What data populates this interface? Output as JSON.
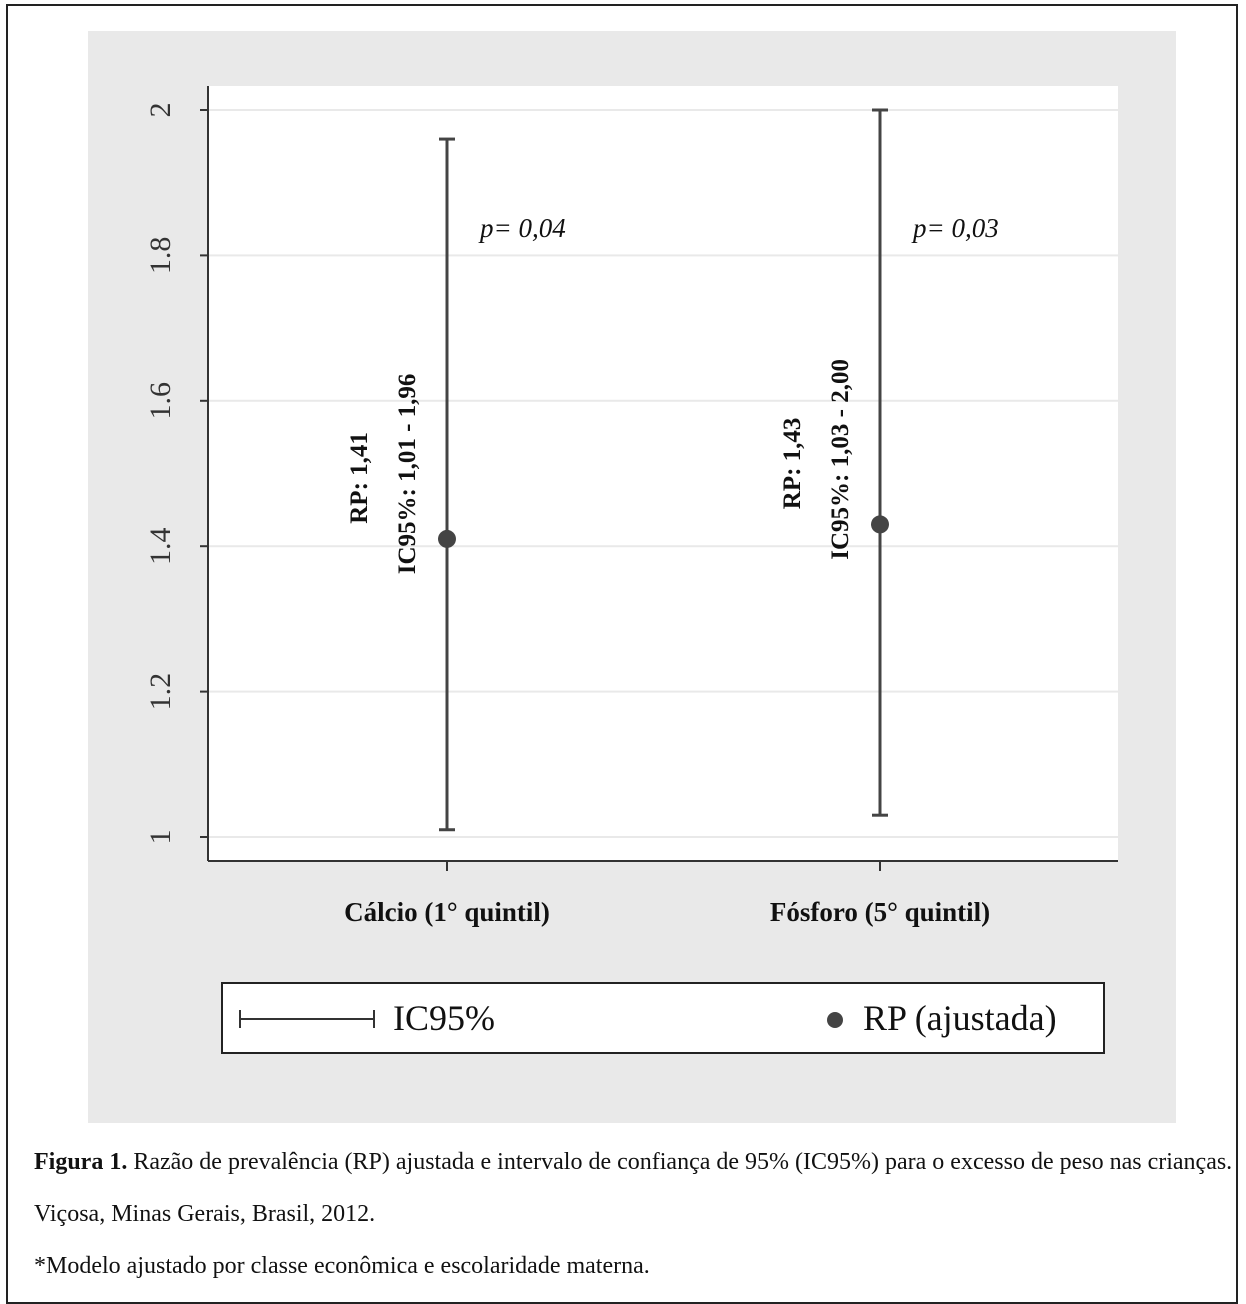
{
  "chart_data": {
    "type": "scatter",
    "subtype": "error-bar",
    "categories": [
      "Cálcio (1° quintil)",
      "Fósforo (5° quintil)"
    ],
    "estimates": [
      1.41,
      1.43
    ],
    "ci_lower": [
      1.01,
      1.03
    ],
    "ci_upper": [
      1.96,
      2.0
    ],
    "point_labels": [
      {
        "rp": "RP: 1,41",
        "ci": "IC95%: 1,01 - 1,96",
        "p": "p= 0,04"
      },
      {
        "rp": "RP: 1,43",
        "ci": "IC95%: 1,03 - 2,00",
        "p": "p= 0,03"
      }
    ],
    "y_ticks": [
      1,
      1.2,
      1.4,
      1.6,
      1.8,
      2
    ],
    "y_tick_labels": [
      "1",
      "1.2",
      "1.4",
      "1.6",
      "1.8",
      "2"
    ],
    "ylim": [
      0.967,
      2.033
    ],
    "grid": true,
    "legend": {
      "position": "bottom",
      "entries": [
        {
          "symbol": "error-bar",
          "label": "IC95%"
        },
        {
          "symbol": "dot",
          "label": "RP (ajustada)"
        }
      ]
    },
    "colors": {
      "panel": "#e9e9e9",
      "plot": "#ffffff",
      "marks": "#444444",
      "grid": "#e9e9e9"
    }
  },
  "caption": {
    "figure_label": "Figura 1.",
    "text": " Razão de prevalência (RP) ajustada e intervalo de confiança de 95% (IC95%) para o excesso de peso nas crianças. Viçosa, Minas Gerais, Brasil, 2012.",
    "note": "*Modelo ajustado por classe econômica e escolaridade materna."
  }
}
